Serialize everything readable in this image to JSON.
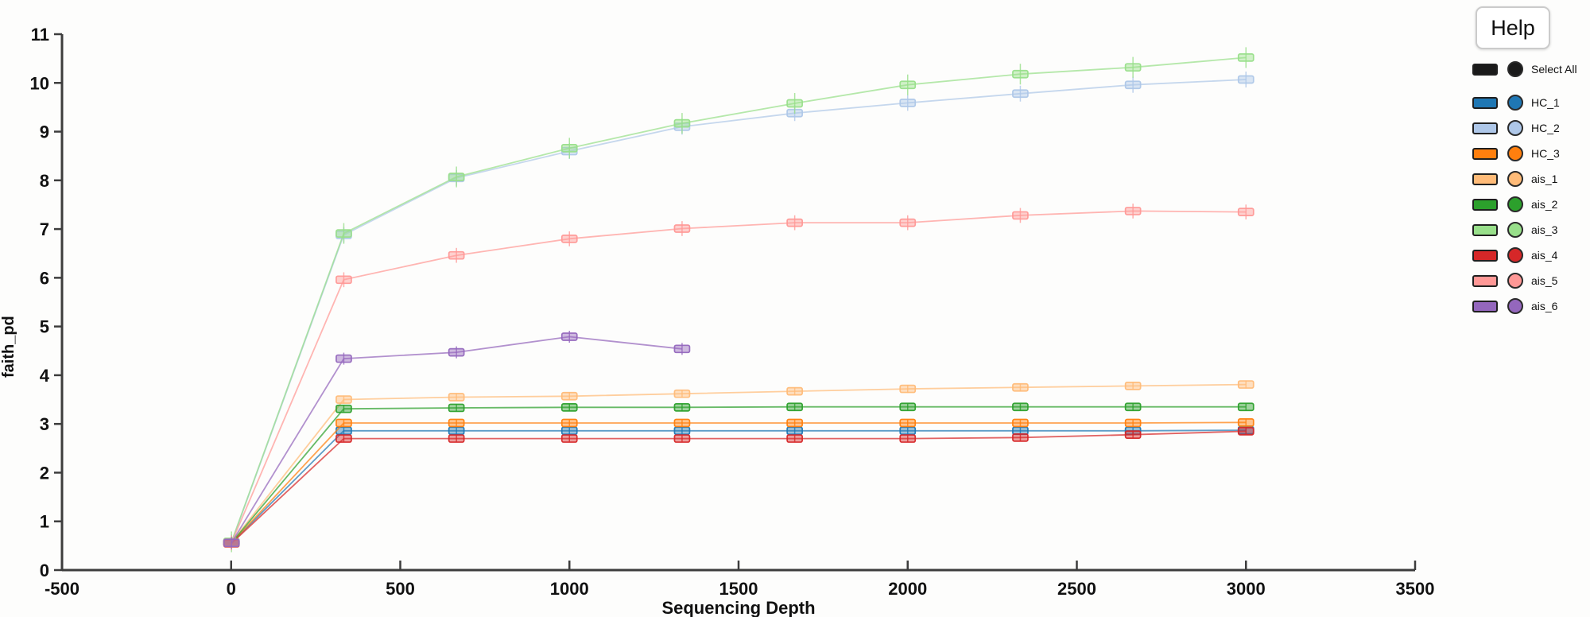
{
  "app": {
    "help_label": "Help"
  },
  "legend": {
    "select_all_label": "Select All",
    "select_all_color": "#1a1a1a",
    "items": [
      {
        "label": "HC_1",
        "color": "#1f77b4"
      },
      {
        "label": "HC_2",
        "color": "#aec7e8"
      },
      {
        "label": "HC_3",
        "color": "#ff7f0e"
      },
      {
        "label": "ais_1",
        "color": "#ffbb78"
      },
      {
        "label": "ais_2",
        "color": "#2ca02c"
      },
      {
        "label": "ais_3",
        "color": "#98df8a"
      },
      {
        "label": "ais_4",
        "color": "#d62728"
      },
      {
        "label": "ais_5",
        "color": "#ff9896"
      },
      {
        "label": "ais_6",
        "color": "#9467bd"
      }
    ]
  },
  "chart_data": {
    "type": "line",
    "title": "",
    "xlabel": "Sequencing Depth",
    "ylabel": "faith_pd",
    "xlim": [
      -500,
      3500
    ],
    "ylim": [
      0,
      11
    ],
    "x_ticks": [
      -500,
      0,
      500,
      1000,
      1500,
      2000,
      2500,
      3000,
      3500
    ],
    "y_ticks": [
      0,
      1,
      2,
      3,
      4,
      5,
      6,
      7,
      8,
      9,
      10,
      11
    ],
    "grid": false,
    "legend_position": "right",
    "marker": "rect-with-error-whisker",
    "x": [
      1,
      333,
      666,
      1000,
      1333,
      1666,
      2000,
      2333,
      2666,
      3000
    ],
    "series": [
      {
        "name": "HC_1",
        "color": "#1f77b4",
        "error": 0.03,
        "values": [
          0.56,
          2.86,
          2.86,
          2.86,
          2.86,
          2.86,
          2.86,
          2.86,
          2.86,
          2.87
        ]
      },
      {
        "name": "HC_2",
        "color": "#aec7e8",
        "error": 0.13,
        "values": [
          0.57,
          6.88,
          8.05,
          8.6,
          9.1,
          9.38,
          9.59,
          9.78,
          9.96,
          10.07
        ]
      },
      {
        "name": "HC_3",
        "color": "#ff7f0e",
        "error": 0.03,
        "values": [
          0.56,
          3.02,
          3.02,
          3.02,
          3.02,
          3.02,
          3.02,
          3.02,
          3.02,
          3.03
        ]
      },
      {
        "name": "ais_1",
        "color": "#ffbb78",
        "error": 0.05,
        "values": [
          0.57,
          3.5,
          3.55,
          3.57,
          3.62,
          3.67,
          3.72,
          3.75,
          3.78,
          3.81
        ]
      },
      {
        "name": "ais_2",
        "color": "#2ca02c",
        "error": 0.04,
        "values": [
          0.56,
          3.31,
          3.33,
          3.34,
          3.34,
          3.35,
          3.35,
          3.35,
          3.35,
          3.35
        ]
      },
      {
        "name": "ais_3",
        "color": "#98df8a",
        "error": 0.18,
        "values": [
          0.58,
          6.91,
          8.07,
          8.66,
          9.17,
          9.58,
          9.96,
          10.18,
          10.32,
          10.52
        ]
      },
      {
        "name": "ais_4",
        "color": "#d62728",
        "error": 0.03,
        "values": [
          0.55,
          2.7,
          2.7,
          2.7,
          2.7,
          2.7,
          2.7,
          2.72,
          2.78,
          2.85
        ]
      },
      {
        "name": "ais_5",
        "color": "#ff9896",
        "error": 0.12,
        "values": [
          0.56,
          5.96,
          6.46,
          6.8,
          7.01,
          7.13,
          7.13,
          7.28,
          7.37,
          7.35
        ]
      },
      {
        "name": "ais_6",
        "color": "#9467bd",
        "error": 0.09,
        "values": [
          0.56,
          4.34,
          4.47,
          4.79,
          4.54,
          null,
          null,
          null,
          null,
          null
        ]
      }
    ]
  }
}
